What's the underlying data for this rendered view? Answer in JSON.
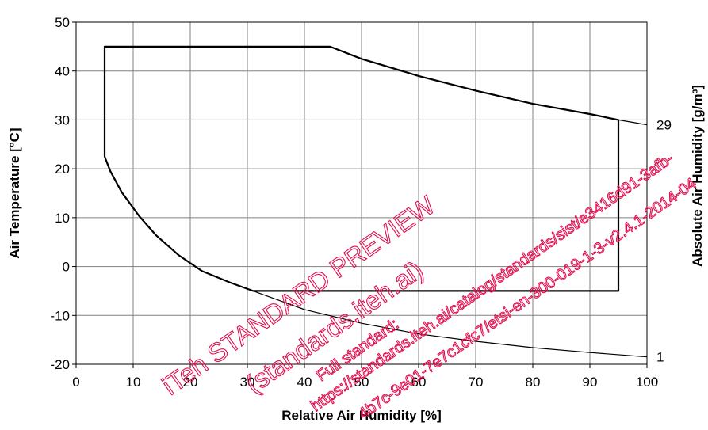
{
  "chart_data": {
    "type": "line",
    "title": "",
    "xlabel": "Relative Air Humidity [%]",
    "ylabel": "Air Temperature [°C]",
    "y2label": "Absolute Air  Humidity [g/m³]",
    "xlim": [
      0,
      100
    ],
    "ylim": [
      -20,
      50
    ],
    "xticks": [
      0,
      10,
      20,
      30,
      40,
      50,
      60,
      70,
      80,
      90,
      100
    ],
    "yticks": [
      -20,
      -10,
      0,
      10,
      20,
      30,
      40,
      50
    ],
    "grid": true,
    "legend": "none",
    "series": [
      {
        "x": [
          5,
          5,
          44.5,
          50,
          60,
          70,
          80,
          90,
          95,
          95,
          31,
          27,
          22,
          18,
          14,
          11,
          8,
          6,
          5
        ],
        "y": [
          22.5,
          45,
          45,
          42.5,
          39,
          36,
          33.3,
          31.2,
          30,
          -5,
          -5,
          -3.3,
          -0.9,
          2.3,
          6.4,
          10.4,
          15.2,
          19.5,
          22.5
        ]
      },
      {
        "label": "29",
        "x": [
          44.5,
          50,
          60,
          70,
          80,
          90,
          95,
          100
        ],
        "y": [
          45,
          42.5,
          39,
          36,
          33.3,
          31.2,
          30,
          29
        ]
      },
      {
        "label": "1",
        "x": [
          5,
          6,
          8,
          11,
          14,
          18,
          22,
          27,
          31,
          40,
          50,
          60,
          70,
          80,
          90,
          100
        ],
        "y": [
          22.5,
          19.5,
          15.2,
          10.4,
          6.4,
          2.3,
          -0.9,
          -3.3,
          -5,
          -8.8,
          -11.6,
          -13.8,
          -15.3,
          -16.6,
          -17.6,
          -18.5
        ]
      }
    ]
  },
  "watermark": {
    "line1": "iTeh STANDARD PREVIEW",
    "line2": "(standards.iteh.ai)",
    "line3": "Full standard:",
    "line4": "https://standards.iteh.ai/catalog/standards/sist/e3416d91-3afb-",
    "line5": "4b7c-9e01-7e7c1cfc7/etsi-en-300-019-1-3-v2.4.1-2014-04",
    "color": "#e0104f"
  }
}
